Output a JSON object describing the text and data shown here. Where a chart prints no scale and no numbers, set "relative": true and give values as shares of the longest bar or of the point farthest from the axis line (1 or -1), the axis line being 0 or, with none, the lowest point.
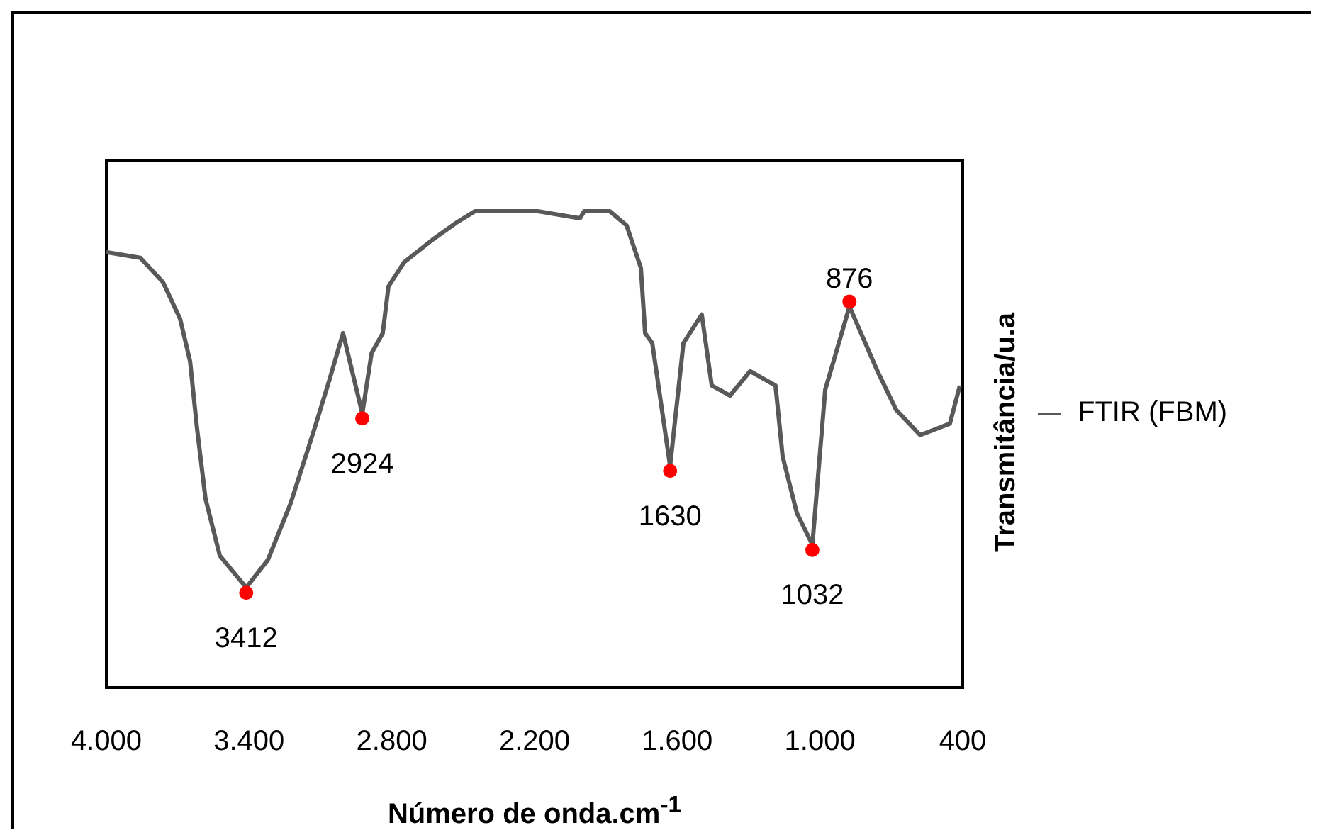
{
  "chart_data": {
    "type": "line",
    "xlabel": "Número de onda.cm$^{-1}$",
    "ylabel": "Transmitância/u.a",
    "relative": true,
    "xlim": [
      4000,
      400
    ],
    "xticks": [
      {
        "value": 4000,
        "label": "4.000"
      },
      {
        "value": 3400,
        "label": "3.400"
      },
      {
        "value": 2800,
        "label": "2.800"
      },
      {
        "value": 2200,
        "label": "2.200"
      },
      {
        "value": 1600,
        "label": "1.600"
      },
      {
        "value": 1000,
        "label": "1.000"
      },
      400
    ],
    "legend": "right",
    "grid": false,
    "marker": "none",
    "line_style": "solid",
    "series": [
      {
        "name": "FTIR (FBM)",
        "color": "#595959",
        "x": [
          4000,
          3857,
          3762,
          3690,
          3648,
          3619,
          3583,
          3523,
          3412,
          3321,
          3225,
          3124,
          3064,
          3005,
          2924,
          2885,
          2838,
          2814,
          2748,
          2629,
          2528,
          2450,
          2188,
          2009,
          1991,
          1884,
          1813,
          1753,
          1735,
          1705,
          1630,
          1574,
          1497,
          1455,
          1378,
          1294,
          1187,
          1157,
          1097,
          1032,
          978,
          876,
          758,
          680,
          579,
          501,
          454,
          412
        ],
        "values": [
          0.914,
          0.902,
          0.851,
          0.774,
          0.685,
          0.545,
          0.396,
          0.277,
          0.21,
          0.268,
          0.387,
          0.545,
          0.643,
          0.744,
          0.575,
          0.702,
          0.744,
          0.842,
          0.893,
          0.94,
          0.976,
          1.0,
          1.0,
          0.985,
          1.0,
          1.0,
          0.97,
          0.881,
          0.744,
          0.723,
          0.465,
          0.723,
          0.783,
          0.634,
          0.613,
          0.664,
          0.634,
          0.485,
          0.366,
          0.3,
          0.625,
          0.8,
          0.664,
          0.583,
          0.53,
          0.545,
          0.554,
          0.634
        ]
      },
      {
        "type": "scatter",
        "color": "#ff0000",
        "marker": "circle",
        "x": [
          3412,
          2924,
          1630,
          1032,
          876
        ],
        "values": [
          0.199,
          0.565,
          0.455,
          0.289,
          0.81
        ]
      }
    ],
    "annotations": [
      {
        "text": "3412",
        "x": 3412,
        "y": 0.199
      },
      {
        "text": "2924",
        "x": 2924,
        "y": 0.565
      },
      {
        "text": "1630",
        "x": 1630,
        "y": 0.455
      },
      {
        "text": "1032",
        "x": 1032,
        "y": 0.289
      },
      {
        "text": "876",
        "x": 876,
        "y": 0.81
      }
    ]
  }
}
